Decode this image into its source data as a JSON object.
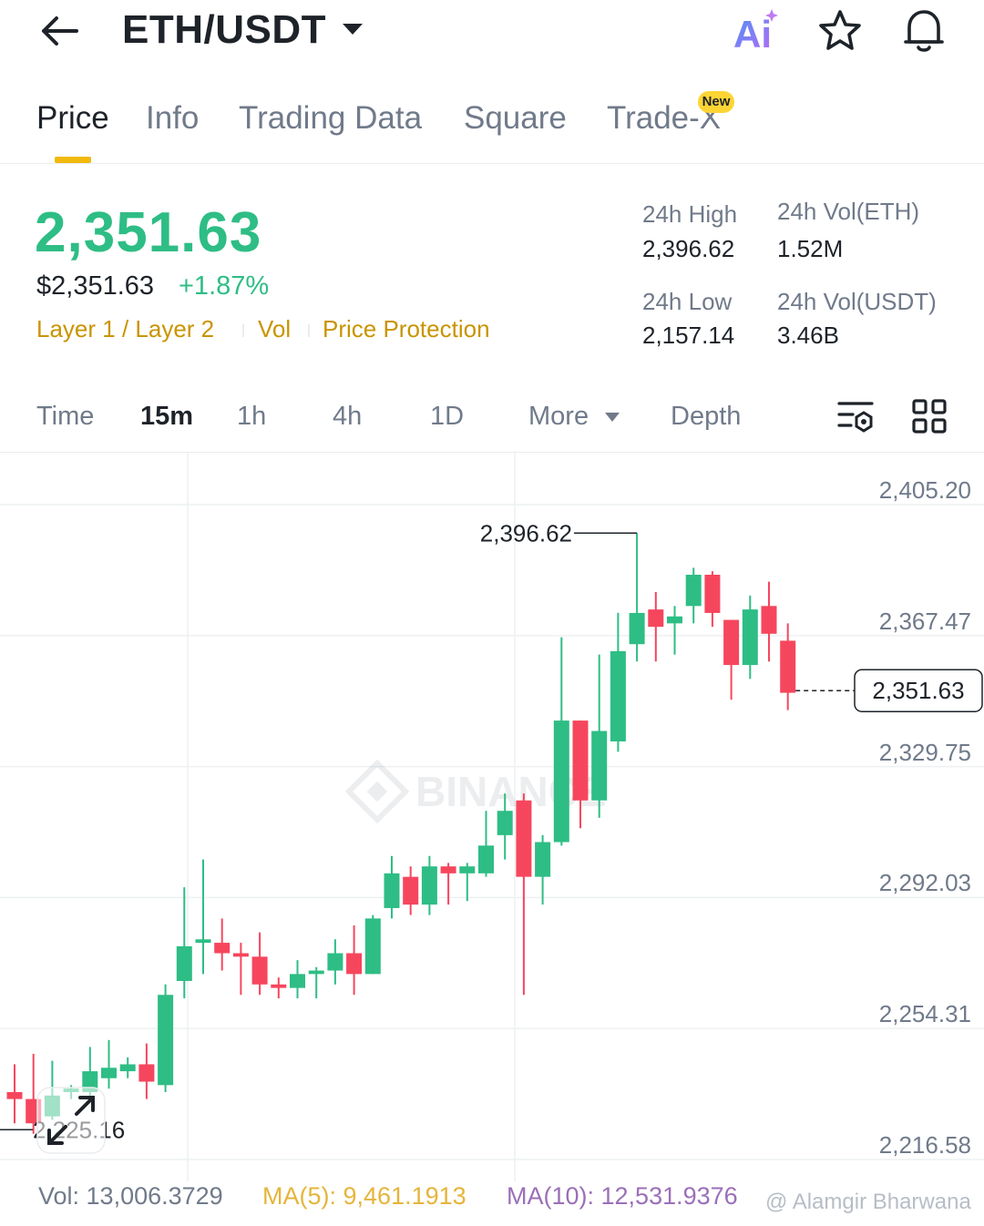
{
  "header": {
    "pair": "ETH/USDT",
    "icons": [
      "back-arrow-icon",
      "caret-down-icon",
      "ai-icon",
      "star-icon",
      "bell-icon"
    ],
    "ai_text": "Ai"
  },
  "tabs": [
    {
      "label": "Price",
      "active": true
    },
    {
      "label": "Info"
    },
    {
      "label": "Trading Data"
    },
    {
      "label": "Square"
    },
    {
      "label": "Trade-X",
      "badge": "New"
    }
  ],
  "ticker": {
    "last_price": "2,351.63",
    "usd_price": "$2,351.63",
    "change": "+1.87%",
    "tags": [
      "Layer 1 / Layer 2",
      "Vol",
      "Price Protection"
    ],
    "high_label": "24h High",
    "high": "2,396.62",
    "low_label": "24h Low",
    "low": "2,157.14",
    "vol_eth_label": "24h Vol(ETH)",
    "vol_eth": "1.52M",
    "vol_usdt_label": "24h Vol(USDT)",
    "vol_usdt": "3.46B"
  },
  "intervals": {
    "items": [
      "Time",
      "15m",
      "1h",
      "4h",
      "1D"
    ],
    "active": "15m",
    "more": "More",
    "depth": "Depth",
    "icons": [
      "chart-settings-icon",
      "grid-layout-icon"
    ]
  },
  "chart_data": {
    "type": "candlestick",
    "y_ticks": [
      "2,405.20",
      "2,367.47",
      "2,329.75",
      "2,292.03",
      "2,254.31",
      "2,216.58"
    ],
    "ylim": [
      2216.58,
      2405.2
    ],
    "max_label": "2,396.62",
    "min_label": "2,225.16",
    "current_price_label": "2,351.63",
    "watermark": "BINANCE",
    "colors": {
      "up": "#2ebd85",
      "down": "#f6465d"
    },
    "candles": [
      [
        2236,
        2234,
        2227,
        2244
      ],
      [
        2234,
        2227,
        2224,
        2247
      ],
      [
        2229,
        2235,
        2228,
        2245
      ],
      [
        2236,
        2237,
        2234,
        2238
      ],
      [
        2236,
        2242,
        2234,
        2249
      ],
      [
        2240,
        2243,
        2237,
        2251
      ],
      [
        2242,
        2244,
        2240,
        2246
      ],
      [
        2244,
        2239,
        2234,
        2250
      ],
      [
        2238,
        2264,
        2236,
        2267
      ],
      [
        2268,
        2278,
        2263,
        2295
      ],
      [
        2279,
        2280,
        2270,
        2303
      ],
      [
        2279,
        2276,
        2271,
        2286
      ],
      [
        2276,
        2275,
        2264,
        2279
      ],
      [
        2275,
        2267,
        2264,
        2282
      ],
      [
        2267,
        2266,
        2263,
        2269
      ],
      [
        2266,
        2270,
        2263,
        2274
      ],
      [
        2270,
        2271,
        2263,
        2272
      ],
      [
        2271,
        2276,
        2267,
        2280
      ],
      [
        2276,
        2270,
        2264,
        2284
      ],
      [
        2270,
        2286,
        2270,
        2287
      ],
      [
        2289,
        2299,
        2286,
        2304
      ],
      [
        2298,
        2290,
        2287,
        2301
      ],
      [
        2290,
        2301,
        2287,
        2304
      ],
      [
        2301,
        2299,
        2290,
        2302
      ],
      [
        2299,
        2301,
        2291,
        2302
      ],
      [
        2299,
        2307,
        2298,
        2317
      ],
      [
        2310,
        2317,
        2303,
        2322
      ],
      [
        2320,
        2298,
        2264,
        2322
      ],
      [
        2298,
        2308,
        2290,
        2310
      ],
      [
        2308,
        2343,
        2307,
        2367
      ],
      [
        2343,
        2320,
        2312,
        2343
      ],
      [
        2320,
        2340,
        2315,
        2362
      ],
      [
        2337,
        2363,
        2334,
        2374
      ],
      [
        2365,
        2374,
        2360,
        2397
      ],
      [
        2375,
        2370,
        2360,
        2380
      ],
      [
        2371,
        2373,
        2362,
        2376
      ],
      [
        2376,
        2385,
        2371,
        2387
      ],
      [
        2385,
        2374,
        2370,
        2386
      ],
      [
        2372,
        2359,
        2349,
        2372
      ],
      [
        2359,
        2375,
        2355,
        2379
      ],
      [
        2376,
        2368,
        2360,
        2383
      ],
      [
        2366,
        2351,
        2346,
        2371
      ]
    ]
  },
  "indicators": {
    "vol": "Vol: 13,006.3729",
    "ma5": "MA(5): 9,461.1913",
    "ma10": "MA(10): 12,531.9376",
    "credit": "@ Alamgir Bharwana"
  }
}
